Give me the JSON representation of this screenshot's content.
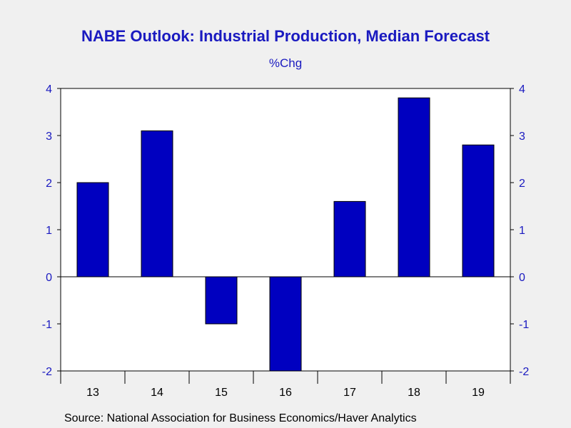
{
  "header": {
    "title": "NABE Outlook: Industrial Production, Median Forecast",
    "subtitle": "%Chg"
  },
  "footer": {
    "source": "Source:  National Association for Business Economics/Haver Analytics"
  },
  "colors": {
    "bar_fill": "#0000c0",
    "bar_stroke": "#000000",
    "title_text": "#1a1ac0",
    "axis_text": "#1a1ac0",
    "plot_background": "#ffffff",
    "page_background": "#f0f0f0"
  },
  "chart_data": {
    "type": "bar",
    "title": "NABE Outlook: Industrial Production, Median Forecast",
    "subtitle": "%Chg",
    "xlabel": "",
    "ylabel": "",
    "categories": [
      "13",
      "14",
      "15",
      "16",
      "17",
      "18",
      "19"
    ],
    "values": [
      2.0,
      3.1,
      -1.0,
      -2.0,
      1.6,
      3.8,
      2.8
    ],
    "ylim": [
      -2,
      4
    ],
    "yticks": [
      "4",
      "3",
      "2",
      "1",
      "0",
      "-1",
      "-2"
    ],
    "ytick_values": [
      4,
      3,
      2,
      1,
      0,
      -1,
      -2
    ],
    "y_axis_sides": "both",
    "grid": false,
    "zero_line": true
  }
}
